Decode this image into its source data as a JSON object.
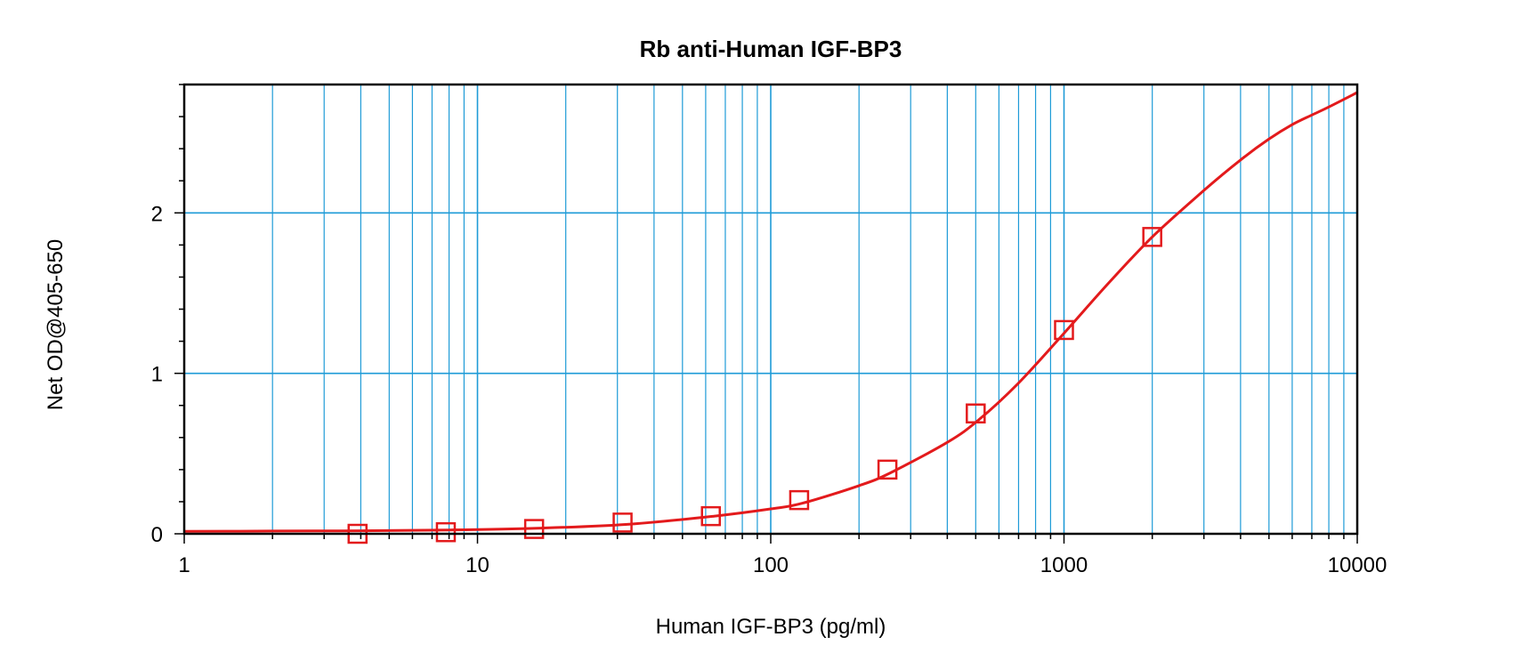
{
  "chart_data": {
    "type": "scatter",
    "title": "Rb anti-Human IGF-BP3",
    "xlabel": "Human IGF-BP3 (pg/ml)",
    "ylabel": "Net OD@405-650",
    "x_scale": "log",
    "xlim": [
      1,
      10000
    ],
    "ylim": [
      0,
      2.8
    ],
    "x_ticks": [
      1,
      10,
      100,
      1000,
      10000
    ],
    "y_ticks": [
      0,
      1,
      2
    ],
    "grid": true,
    "colors": {
      "grid": "#1e9bd7",
      "series": "#e31a1c",
      "axis": "#000000"
    },
    "series": [
      {
        "kind": "points",
        "marker": "square",
        "x": [
          3.9,
          7.8,
          15.6,
          31.25,
          62.5,
          125,
          250,
          500,
          1000,
          2000
        ],
        "y": [
          0.0,
          0.01,
          0.03,
          0.07,
          0.11,
          0.21,
          0.4,
          0.75,
          1.27,
          1.85
        ]
      },
      {
        "kind": "fit-curve",
        "x": [
          1,
          2,
          4,
          8,
          16,
          32,
          64,
          100,
          128,
          200,
          256,
          400,
          512,
          700,
          1000,
          1400,
          2000,
          3000,
          4000,
          5000,
          6000,
          7000,
          8000,
          10000
        ],
        "y": [
          0.015,
          0.017,
          0.019,
          0.024,
          0.035,
          0.058,
          0.11,
          0.155,
          0.19,
          0.3,
          0.38,
          0.57,
          0.71,
          0.94,
          1.25,
          1.55,
          1.85,
          2.14,
          2.33,
          2.46,
          2.55,
          2.61,
          2.66,
          2.75
        ]
      }
    ]
  }
}
